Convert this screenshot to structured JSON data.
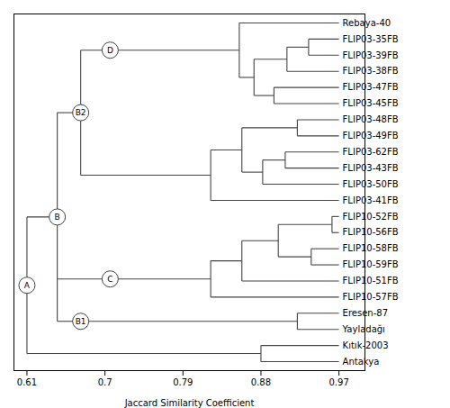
{
  "chart_data": {
    "type": "dendrogram",
    "xlabel": "Jaccard Similarity Coefficient",
    "xlim": [
      0.595,
      1.0
    ],
    "xticks": [
      0.61,
      0.7,
      0.79,
      0.88,
      0.97
    ],
    "color": "#444444",
    "leaf_x": 0.97,
    "tree": {
      "x": 0.61,
      "label": "A",
      "children": [
        {
          "x": 0.645,
          "label": "B",
          "children": [
            {
              "x": 0.672,
              "label": "B2",
              "children": [
                {
                  "x": 0.706,
                  "label": "D",
                  "children": [
                    {
                      "x": 0.855,
                      "children": [
                        {
                          "name": "Rebaya-40"
                        },
                        {
                          "x": 0.872,
                          "children": [
                            {
                              "x": 0.91,
                              "children": [
                                {
                                  "x": 0.935,
                                  "children": [
                                    {
                                      "name": "FLIP03-35FB"
                                    },
                                    {
                                      "name": "FLIP03-39FB"
                                    }
                                  ]
                                },
                                {
                                  "name": "FLIP03-38FB"
                                }
                              ]
                            },
                            {
                              "x": 0.895,
                              "children": [
                                {
                                  "name": "FLIP03-47FB"
                                },
                                {
                                  "name": "FLIP03-45FB"
                                }
                              ]
                            }
                          ]
                        }
                      ]
                    }
                  ]
                },
                {
                  "x": 0.822,
                  "children": [
                    {
                      "x": 0.858,
                      "children": [
                        {
                          "x": 0.922,
                          "children": [
                            {
                              "name": "FLIP03-48FB"
                            },
                            {
                              "name": "FLIP03-49FB"
                            }
                          ]
                        },
                        {
                          "x": 0.882,
                          "children": [
                            {
                              "x": 0.908,
                              "children": [
                                {
                                  "name": "FLIP03-62FB"
                                },
                                {
                                  "name": "FLIP03-43FB"
                                }
                              ]
                            },
                            {
                              "name": "FLIP03-50FB"
                            }
                          ]
                        }
                      ]
                    },
                    {
                      "name": "FLIP03-41FB"
                    }
                  ]
                }
              ]
            },
            {
              "x": 0.706,
              "label": "C",
              "children": [
                {
                  "x": 0.822,
                  "children": [
                    {
                      "x": 0.858,
                      "children": [
                        {
                          "x": 0.9,
                          "children": [
                            {
                              "x": 0.962,
                              "children": [
                                {
                                  "name": "FLIP10-52FB"
                                },
                                {
                                  "name": "FLIP10-56FB"
                                }
                              ]
                            },
                            {
                              "x": 0.938,
                              "children": [
                                {
                                  "name": "FLIP10-58FB"
                                },
                                {
                                  "name": "FLIP10-59FB"
                                }
                              ]
                            }
                          ]
                        },
                        {
                          "name": "FLIP10-51FB"
                        }
                      ]
                    },
                    {
                      "name": "FLIP10-57FB"
                    }
                  ]
                }
              ]
            },
            {
              "x": 0.672,
              "label": "B1",
              "children": [
                {
                  "x": 0.922,
                  "children": [
                    {
                      "name": "Eresen-87"
                    },
                    {
                      "name": "Yayladağı"
                    }
                  ]
                }
              ]
            }
          ]
        },
        {
          "x": 0.88,
          "children": [
            {
              "name": "Kıtık-2003"
            },
            {
              "name": "Antakya"
            }
          ]
        }
      ]
    }
  }
}
